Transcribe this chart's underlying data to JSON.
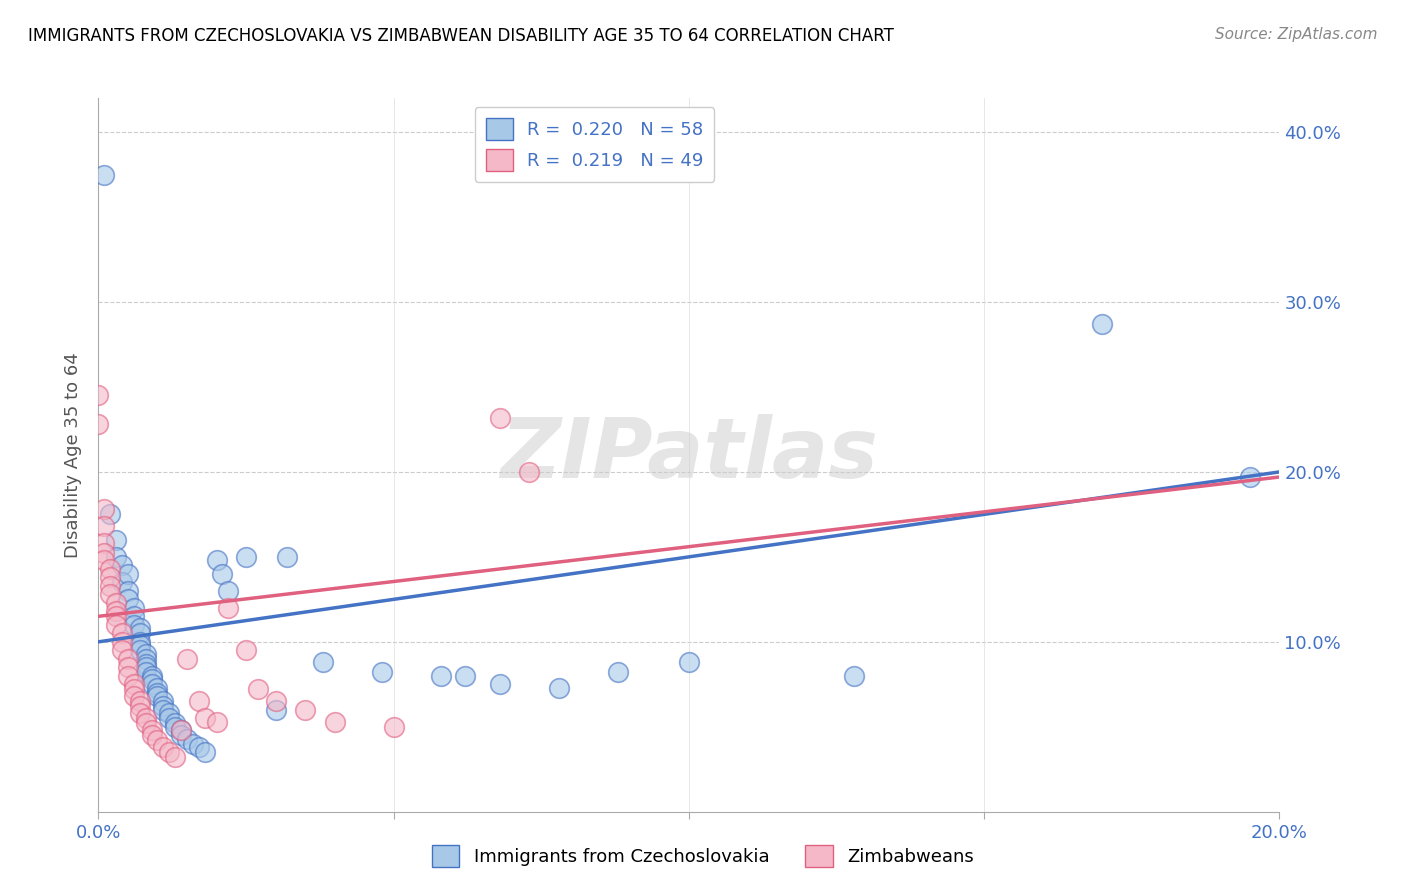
{
  "title": "IMMIGRANTS FROM CZECHOSLOVAKIA VS ZIMBABWEAN DISABILITY AGE 35 TO 64 CORRELATION CHART",
  "source": "Source: ZipAtlas.com",
  "ylabel": "Disability Age 35 to 64",
  "xlim": [
    0.0,
    0.2
  ],
  "ylim": [
    0.0,
    0.42
  ],
  "xtick_vals": [
    0.0,
    0.05,
    0.1,
    0.15,
    0.2
  ],
  "xtick_labels": [
    "0.0%",
    "",
    "",
    "",
    "20.0%"
  ],
  "ytick_positions": [
    0.1,
    0.2,
    0.3,
    0.4
  ],
  "ytick_labels": [
    "10.0%",
    "20.0%",
    "30.0%",
    "40.0%"
  ],
  "r1": 0.22,
  "n1": 58,
  "r2": 0.219,
  "n2": 49,
  "color_blue": "#a8c8e8",
  "color_blue_line": "#4472c4",
  "color_pink": "#f4b8c8",
  "color_pink_line": "#e06080",
  "watermark": "ZIPatlas",
  "blue_scatter": [
    [
      0.001,
      0.375
    ],
    [
      0.002,
      0.175
    ],
    [
      0.003,
      0.16
    ],
    [
      0.003,
      0.15
    ],
    [
      0.004,
      0.145
    ],
    [
      0.004,
      0.135
    ],
    [
      0.005,
      0.14
    ],
    [
      0.005,
      0.13
    ],
    [
      0.005,
      0.125
    ],
    [
      0.006,
      0.12
    ],
    [
      0.006,
      0.115
    ],
    [
      0.006,
      0.11
    ],
    [
      0.007,
      0.108
    ],
    [
      0.007,
      0.105
    ],
    [
      0.007,
      0.1
    ],
    [
      0.007,
      0.098
    ],
    [
      0.007,
      0.095
    ],
    [
      0.008,
      0.093
    ],
    [
      0.008,
      0.09
    ],
    [
      0.008,
      0.087
    ],
    [
      0.008,
      0.085
    ],
    [
      0.008,
      0.082
    ],
    [
      0.009,
      0.08
    ],
    [
      0.009,
      0.078
    ],
    [
      0.009,
      0.075
    ],
    [
      0.01,
      0.073
    ],
    [
      0.01,
      0.07
    ],
    [
      0.01,
      0.068
    ],
    [
      0.011,
      0.065
    ],
    [
      0.011,
      0.062
    ],
    [
      0.011,
      0.06
    ],
    [
      0.012,
      0.058
    ],
    [
      0.012,
      0.055
    ],
    [
      0.013,
      0.052
    ],
    [
      0.013,
      0.05
    ],
    [
      0.014,
      0.048
    ],
    [
      0.014,
      0.045
    ],
    [
      0.015,
      0.043
    ],
    [
      0.016,
      0.04
    ],
    [
      0.017,
      0.038
    ],
    [
      0.018,
      0.035
    ],
    [
      0.02,
      0.148
    ],
    [
      0.021,
      0.14
    ],
    [
      0.022,
      0.13
    ],
    [
      0.025,
      0.15
    ],
    [
      0.03,
      0.06
    ],
    [
      0.032,
      0.15
    ],
    [
      0.038,
      0.088
    ],
    [
      0.048,
      0.082
    ],
    [
      0.058,
      0.08
    ],
    [
      0.062,
      0.08
    ],
    [
      0.068,
      0.075
    ],
    [
      0.078,
      0.073
    ],
    [
      0.088,
      0.082
    ],
    [
      0.1,
      0.088
    ],
    [
      0.128,
      0.08
    ],
    [
      0.17,
      0.287
    ],
    [
      0.195,
      0.197
    ]
  ],
  "pink_scatter": [
    [
      0.0,
      0.245
    ],
    [
      0.0,
      0.228
    ],
    [
      0.001,
      0.178
    ],
    [
      0.001,
      0.168
    ],
    [
      0.001,
      0.158
    ],
    [
      0.001,
      0.152
    ],
    [
      0.001,
      0.148
    ],
    [
      0.002,
      0.143
    ],
    [
      0.002,
      0.138
    ],
    [
      0.002,
      0.133
    ],
    [
      0.002,
      0.128
    ],
    [
      0.003,
      0.123
    ],
    [
      0.003,
      0.118
    ],
    [
      0.003,
      0.115
    ],
    [
      0.003,
      0.11
    ],
    [
      0.004,
      0.105
    ],
    [
      0.004,
      0.1
    ],
    [
      0.004,
      0.095
    ],
    [
      0.005,
      0.09
    ],
    [
      0.005,
      0.085
    ],
    [
      0.005,
      0.08
    ],
    [
      0.006,
      0.075
    ],
    [
      0.006,
      0.072
    ],
    [
      0.006,
      0.068
    ],
    [
      0.007,
      0.065
    ],
    [
      0.007,
      0.062
    ],
    [
      0.007,
      0.058
    ],
    [
      0.008,
      0.055
    ],
    [
      0.008,
      0.052
    ],
    [
      0.009,
      0.048
    ],
    [
      0.009,
      0.045
    ],
    [
      0.01,
      0.042
    ],
    [
      0.011,
      0.038
    ],
    [
      0.012,
      0.035
    ],
    [
      0.013,
      0.032
    ],
    [
      0.014,
      0.048
    ],
    [
      0.015,
      0.09
    ],
    [
      0.017,
      0.065
    ],
    [
      0.018,
      0.055
    ],
    [
      0.02,
      0.053
    ],
    [
      0.022,
      0.12
    ],
    [
      0.025,
      0.095
    ],
    [
      0.027,
      0.072
    ],
    [
      0.03,
      0.065
    ],
    [
      0.035,
      0.06
    ],
    [
      0.04,
      0.053
    ],
    [
      0.05,
      0.05
    ],
    [
      0.068,
      0.232
    ],
    [
      0.073,
      0.2
    ]
  ],
  "blue_trendline": [
    [
      0.0,
      0.1
    ],
    [
      0.2,
      0.2
    ]
  ],
  "pink_trendline": [
    [
      0.0,
      0.115
    ],
    [
      0.2,
      0.197
    ]
  ]
}
